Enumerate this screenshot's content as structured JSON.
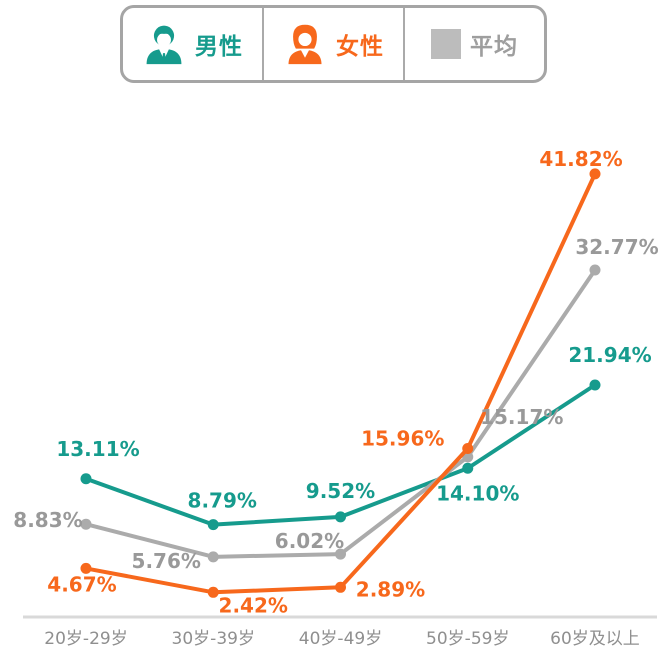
{
  "legend": {
    "items": [
      {
        "key": "male",
        "label": "男性",
        "icon": "male-person-icon",
        "color": "#169b8d"
      },
      {
        "key": "female",
        "label": "女性",
        "icon": "female-person-icon",
        "color": "#f7681c"
      },
      {
        "key": "avg",
        "label": "平均",
        "icon": "square-swatch",
        "color": "#bcbcbc"
      }
    ]
  },
  "chart_data": {
    "type": "line",
    "title": "",
    "xlabel": "",
    "ylabel": "",
    "categories": [
      "20岁-29岁",
      "30岁-39岁",
      "40岁-49岁",
      "50岁-59岁",
      "60岁及以上"
    ],
    "series": [
      {
        "key": "male",
        "name": "男性",
        "color": "#169b8d",
        "label_color": "#169b8d",
        "values": [
          13.11,
          8.79,
          9.52,
          14.1,
          21.94
        ],
        "label_offsets": [
          [
            12,
            -30
          ],
          [
            9,
            -24
          ],
          [
            0,
            -26
          ],
          [
            10,
            25
          ],
          [
            15,
            -30
          ]
        ]
      },
      {
        "key": "average",
        "name": "平均",
        "color": "#ababab",
        "label_color": "#999999",
        "values": [
          8.83,
          5.76,
          6.02,
          15.17,
          32.77
        ],
        "label_offsets": [
          [
            -38,
            -4
          ],
          [
            -47,
            4
          ],
          [
            -31,
            -13
          ],
          [
            54,
            -40
          ],
          [
            22,
            -23
          ]
        ]
      },
      {
        "key": "female",
        "name": "女性",
        "color": "#f7681c",
        "label_color": "#f7681c",
        "values": [
          4.67,
          2.42,
          2.89,
          15.96,
          41.82
        ],
        "label_offsets": [
          [
            -4,
            16
          ],
          [
            40,
            13
          ],
          [
            50,
            2
          ],
          [
            -65,
            -10
          ],
          [
            -14,
            -15
          ]
        ]
      }
    ],
    "value_label_format": "two-decimals-percent",
    "ylim": [
      0,
      45
    ],
    "grid": false,
    "legend_position": "top",
    "baseline_color": "#d9d9d9",
    "axis_label_color": "#8f8f8f"
  }
}
